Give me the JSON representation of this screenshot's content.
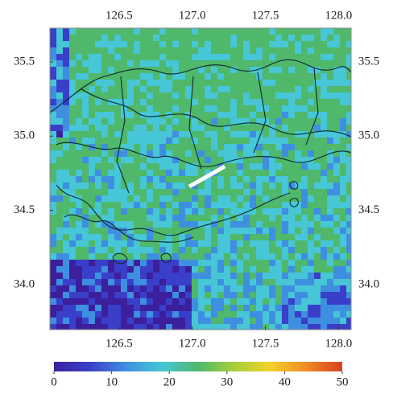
{
  "map": {
    "xlim": [
      126.027,
      128.086
    ],
    "ylim": [
      33.697,
      35.727
    ],
    "xticks": [
      126.5,
      {
        "value": 127,
        "label": "127.0"
      },
      127.5,
      {
        "value": 128,
        "label": "128.0"
      }
    ],
    "yticks": [
      35.5,
      {
        "value": 35,
        "label": "35.0"
      },
      34.5,
      {
        "value": 34,
        "label": "34.0"
      }
    ]
  },
  "colorbar": {
    "lim": [
      0,
      50
    ],
    "ticks": [
      0,
      10,
      20,
      30,
      40,
      50
    ],
    "colors": [
      "#3b1f9c",
      "#3a3fc9",
      "#3f8fe0",
      "#46c6d6",
      "#4fb86a",
      "#a7cf3a",
      "#f2d22a",
      "#f08a24",
      "#d8401f"
    ]
  }
}
